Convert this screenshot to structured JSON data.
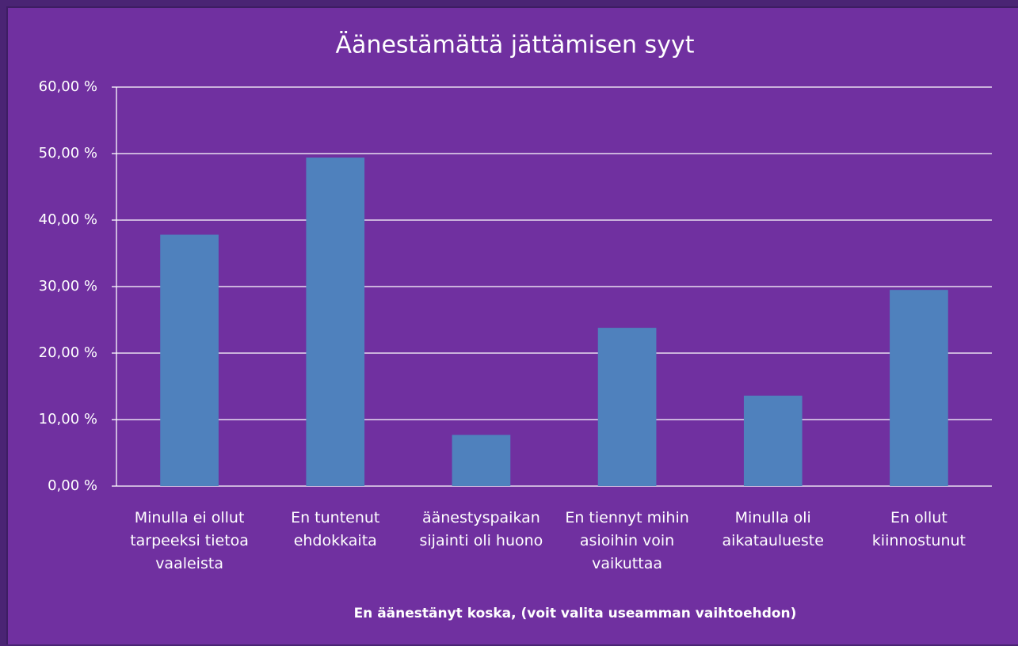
{
  "chart_data": {
    "type": "bar",
    "title": "Äänestämättä jättämisen syyt",
    "x_label": "En äänestänyt koska, (voit valita useamman vaihtoehdon)",
    "categories": [
      "Minulla ei ollut tarpeeksi tietoa vaaleista",
      "En tuntenut ehdokkaita",
      "äänestyspaikan sijainti oli huono",
      "En tiennyt mihin asioihin voin vaikuttaa",
      "Minulla oli aikataulueste",
      "En ollut kiinnostunut"
    ],
    "values": [
      37.8,
      49.4,
      7.7,
      23.8,
      13.6,
      29.5
    ],
    "color": "#4f81bd",
    "ylim": [
      0,
      60
    ],
    "yticks": [
      {
        "value": 0,
        "label": "0,00 %"
      },
      {
        "value": 10,
        "label": "10,00 %"
      },
      {
        "value": 20,
        "label": "20,00 %"
      },
      {
        "value": 30,
        "label": "30,00 %"
      },
      {
        "value": 40,
        "label": "40,00 %"
      },
      {
        "value": 50,
        "label": "50,00 %"
      },
      {
        "value": 60,
        "label": "60,00 %"
      }
    ],
    "grid": true
  }
}
